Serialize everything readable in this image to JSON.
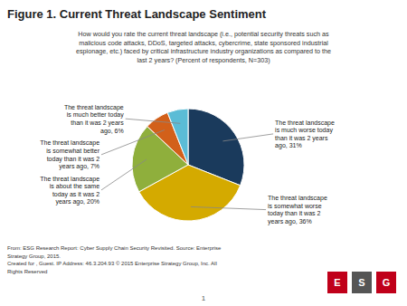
{
  "chart_data": {
    "type": "pie",
    "title": "Figure 1. Current Threat Landscape Sentiment",
    "subtitle": "How would you rate the current threat landscape (i.e., potential security threats such as\nmalicious code attacks, DDoS, targeted attacks, cybercrime, state sponsored industrial\nespionage, etc.) faced by critical infrastructure industry organizations as compared to the\nlast 2 years? (Percent of respondents, N=303)",
    "categories": [
      "The threat landscape\nis much worse today\nthan it was 2 years\nago, 31%",
      "The threat landscape\nis somewhat worse\ntoday than it was 2\nyears ago, 36%",
      "The threat landscape\nis about the same\ntoday as it was 2\nyears ago, 20%",
      "The threat landscape\nis somewhat better\ntoday than it was 2\nyears ago, 7%",
      "The threat landscape\nis much better today\nthan it was 2 years\nago, 6%"
    ],
    "values": [
      31,
      36,
      20,
      7,
      6
    ],
    "colors": [
      "#1a3a5c",
      "#d4aa00",
      "#8faf3c",
      "#d2601a",
      "#5bbcd6"
    ],
    "annotations": [
      "From: ESG Research Report: Cyber Supply Chain Security Revisited. Source: Enterprise",
      "Strategy Group, 2015.",
      "Created for , Guest. IP Address: 46.3.204.93 © 2015 Enterprise Strategy Group, Inc. All",
      "Rights Reserved",
      "1",
      "E",
      "S",
      "G"
    ]
  }
}
